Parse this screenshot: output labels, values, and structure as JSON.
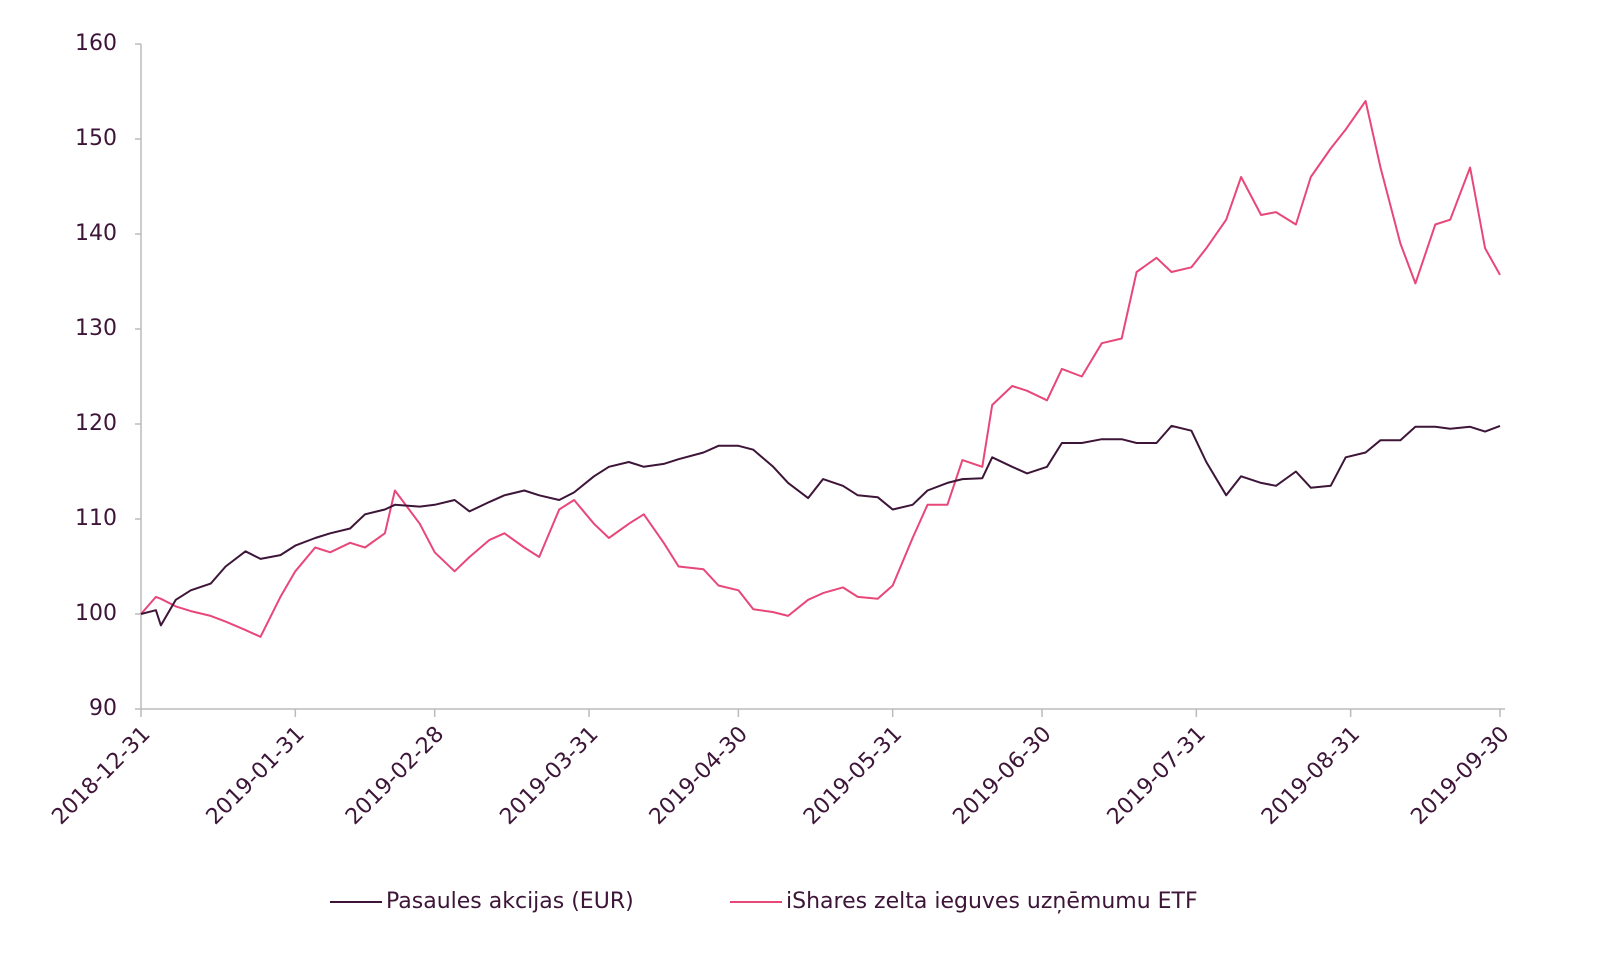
{
  "chart_data": {
    "type": "line",
    "x": [
      "2018-12-31",
      "2019-01-03",
      "2019-01-04",
      "2019-01-07",
      "2019-01-10",
      "2019-01-14",
      "2019-01-17",
      "2019-01-21",
      "2019-01-24",
      "2019-01-28",
      "2019-01-31",
      "2019-02-04",
      "2019-02-07",
      "2019-02-11",
      "2019-02-14",
      "2019-02-18",
      "2019-02-20",
      "2019-02-25",
      "2019-02-28",
      "2019-03-04",
      "2019-03-07",
      "2019-03-11",
      "2019-03-14",
      "2019-03-18",
      "2019-03-21",
      "2019-03-25",
      "2019-03-28",
      "2019-04-01",
      "2019-04-04",
      "2019-04-08",
      "2019-04-11",
      "2019-04-15",
      "2019-04-18",
      "2019-04-23",
      "2019-04-26",
      "2019-04-30",
      "2019-05-03",
      "2019-05-07",
      "2019-05-10",
      "2019-05-14",
      "2019-05-17",
      "2019-05-21",
      "2019-05-24",
      "2019-05-28",
      "2019-05-31",
      "2019-06-04",
      "2019-06-07",
      "2019-06-11",
      "2019-06-14",
      "2019-06-18",
      "2019-06-20",
      "2019-06-24",
      "2019-06-27",
      "2019-07-01",
      "2019-07-04",
      "2019-07-08",
      "2019-07-12",
      "2019-07-16",
      "2019-07-19",
      "2019-07-23",
      "2019-07-26",
      "2019-07-30",
      "2019-08-02",
      "2019-08-06",
      "2019-08-09",
      "2019-08-13",
      "2019-08-16",
      "2019-08-20",
      "2019-08-23",
      "2019-08-27",
      "2019-08-30",
      "2019-09-03",
      "2019-09-06",
      "2019-09-10",
      "2019-09-13",
      "2019-09-17",
      "2019-09-20",
      "2019-09-24",
      "2019-09-27",
      "2019-09-30"
    ],
    "series": [
      {
        "name": "Pasaules akcijas (EUR)",
        "color": "#3d1538",
        "values": [
          100,
          100.4,
          98.8,
          101.5,
          102.5,
          103.2,
          105,
          106.6,
          105.8,
          106.2,
          107.2,
          108,
          108.5,
          109,
          110.5,
          111,
          111.5,
          111.3,
          111.5,
          112,
          110.8,
          111.8,
          112.5,
          113,
          112.5,
          112,
          112.8,
          114.5,
          115.5,
          116,
          115.5,
          115.8,
          116.3,
          117,
          117.7,
          117.7,
          117.3,
          115.5,
          113.8,
          112.2,
          114.2,
          113.5,
          112.5,
          112.3,
          111,
          111.5,
          113,
          113.8,
          114.2,
          114.3,
          116.5,
          115.5,
          114.8,
          115.5,
          118,
          118,
          118.4,
          118.4,
          118,
          118,
          119.8,
          119.3,
          116,
          112.5,
          114.5,
          113.8,
          113.5,
          115,
          113.3,
          113.5,
          116.5,
          117,
          118.3,
          118.3,
          119.7,
          119.7,
          119.5,
          119.7,
          119.2,
          119.8
        ]
      },
      {
        "name": "iShares zelta ieguves uzņēmumu ETF",
        "color": "#e8477a",
        "values": [
          100,
          101.8,
          101.6,
          100.8,
          100.3,
          99.8,
          99.2,
          98.3,
          97.6,
          101.8,
          104.5,
          107,
          106.5,
          107.5,
          107,
          108.5,
          113,
          109.5,
          106.5,
          104.5,
          106,
          107.8,
          108.5,
          107,
          106,
          111,
          112,
          109.5,
          108,
          109.5,
          110.5,
          107.5,
          105,
          104.7,
          103,
          102.5,
          100.5,
          100.2,
          99.8,
          101.5,
          102.2,
          102.8,
          101.8,
          101.6,
          103,
          108,
          111.5,
          111.5,
          116.2,
          115.5,
          122,
          124,
          123.5,
          122.5,
          125.8,
          125,
          128.5,
          129,
          136,
          137.5,
          136,
          136.5,
          138.5,
          141.5,
          146,
          142,
          142.3,
          141,
          146,
          149,
          151,
          154,
          147,
          139,
          134.8,
          141,
          141.5,
          147,
          138.5,
          135.7
        ]
      }
    ],
    "xlim": [
      "2018-12-31",
      "2019-09-30"
    ],
    "xticks": [
      "2018-12-31",
      "2019-01-31",
      "2019-02-28",
      "2019-03-31",
      "2019-04-30",
      "2019-05-31",
      "2019-06-30",
      "2019-07-31",
      "2019-08-31",
      "2019-09-30"
    ],
    "ylim": [
      90,
      160
    ],
    "yticks": [
      90,
      100,
      110,
      120,
      130,
      140,
      150,
      160
    ],
    "grid": false,
    "legend": "bottom"
  }
}
